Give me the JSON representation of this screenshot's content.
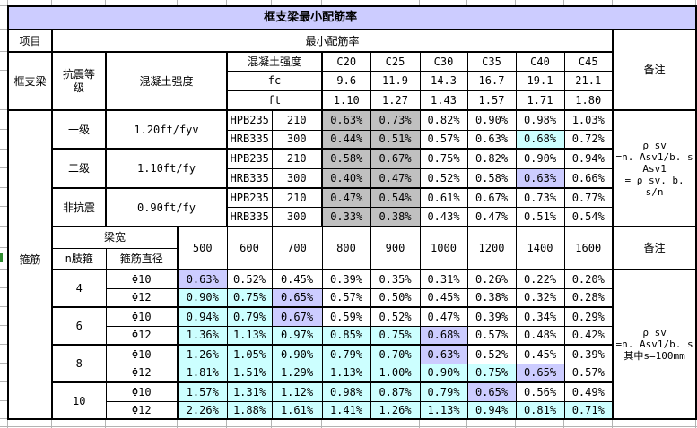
{
  "title": "框支梁最小配筋率",
  "colors": {
    "title_fill": "#CCCCFF",
    "highlight_gray": "#C0C0C0",
    "highlight_cyan": "#CCFFFF",
    "highlight_purple": "#CCCCFF",
    "border": "#000000"
  },
  "project_row": {
    "label": "项目",
    "value": "最小配筋率"
  },
  "beam": {
    "section_label": "框支梁",
    "seismic_grade_header": "抗震等级",
    "concrete_strength_label": "混凝土强度",
    "strength_grade_header": "混凝土强度",
    "fc_label": "fc",
    "ft_label": "ft",
    "grades": [
      "C20",
      "C25",
      "C30",
      "C35",
      "C40",
      "C45"
    ],
    "fc_values": [
      "9.6",
      "11.9",
      "14.3",
      "16.7",
      "19.1",
      "21.1"
    ],
    "ft_values": [
      "1.10",
      "1.27",
      "1.43",
      "1.57",
      "1.71",
      "1.80"
    ],
    "remark_header": "备注",
    "remark_formula": "ρ sv\n=n. Asv1/b. s\nAsv1\n= ρ sv. b. s/n",
    "groups": [
      {
        "grade": "一级",
        "formula": "1.20ft/fyv",
        "rows": [
          {
            "steel": "HPB235",
            "fy": "210",
            "values": [
              "0.63%",
              "0.73%",
              "0.82%",
              "0.90%",
              "0.98%",
              "1.03%"
            ],
            "fills": [
              "gray",
              "gray",
              "",
              "",
              "",
              ""
            ]
          },
          {
            "steel": "HRB335",
            "fy": "300",
            "values": [
              "0.44%",
              "0.51%",
              "0.57%",
              "0.63%",
              "0.68%",
              "0.72%"
            ],
            "fills": [
              "gray",
              "gray",
              "",
              "",
              "cyan",
              ""
            ]
          }
        ]
      },
      {
        "grade": "二级",
        "formula": "1.10ft/fy",
        "rows": [
          {
            "steel": "HPB235",
            "fy": "210",
            "values": [
              "0.58%",
              "0.67%",
              "0.75%",
              "0.82%",
              "0.90%",
              "0.94%"
            ],
            "fills": [
              "gray",
              "gray",
              "",
              "",
              "",
              ""
            ]
          },
          {
            "steel": "HRB335",
            "fy": "300",
            "values": [
              "0.40%",
              "0.47%",
              "0.52%",
              "0.58%",
              "0.63%",
              "0.66%"
            ],
            "fills": [
              "gray",
              "gray",
              "",
              "",
              "purple",
              ""
            ]
          }
        ]
      },
      {
        "grade": "非抗震",
        "formula": "0.90ft/fy",
        "rows": [
          {
            "steel": "HPB235",
            "fy": "210",
            "values": [
              "0.47%",
              "0.54%",
              "0.61%",
              "0.67%",
              "0.73%",
              "0.77%"
            ],
            "fills": [
              "gray",
              "gray",
              "",
              "",
              "",
              ""
            ]
          },
          {
            "steel": "HRB335",
            "fy": "300",
            "values": [
              "0.33%",
              "0.38%",
              "0.43%",
              "0.47%",
              "0.51%",
              "0.54%"
            ],
            "fills": [
              "gray",
              "gray",
              "",
              "",
              "",
              ""
            ]
          }
        ]
      }
    ]
  },
  "stirrup": {
    "section_label": "箍筋",
    "beam_width_header": "梁宽",
    "legs_header": "n肢箍",
    "diameter_header": "箍筋直径",
    "widths": [
      "500",
      "600",
      "700",
      "800",
      "900",
      "1000",
      "1200",
      "1400",
      "1600"
    ],
    "remark_header": "备注",
    "remark_formula": "ρ sv\n=n. Asv1/b. s\n其中s=100mm",
    "groups": [
      {
        "legs": "4",
        "rows": [
          {
            "diameter": "Φ10",
            "values": [
              "0.63%",
              "0.52%",
              "0.45%",
              "0.39%",
              "0.35%",
              "0.31%",
              "0.26%",
              "0.22%",
              "0.20%"
            ],
            "fills": [
              "purple",
              "",
              "",
              "",
              "",
              "",
              "",
              "",
              ""
            ]
          },
          {
            "diameter": "Φ12",
            "values": [
              "0.90%",
              "0.75%",
              "0.65%",
              "0.57%",
              "0.50%",
              "0.45%",
              "0.38%",
              "0.32%",
              "0.28%"
            ],
            "fills": [
              "cyan",
              "cyan",
              "purple",
              "",
              "",
              "",
              "",
              "",
              ""
            ]
          }
        ]
      },
      {
        "legs": "6",
        "rows": [
          {
            "diameter": "Φ10",
            "values": [
              "0.94%",
              "0.79%",
              "0.67%",
              "0.59%",
              "0.52%",
              "0.47%",
              "0.39%",
              "0.34%",
              "0.29%"
            ],
            "fills": [
              "cyan",
              "cyan",
              "purple",
              "",
              "",
              "",
              "",
              "",
              ""
            ]
          },
          {
            "diameter": "Φ12",
            "values": [
              "1.36%",
              "1.13%",
              "0.97%",
              "0.85%",
              "0.75%",
              "0.68%",
              "0.57%",
              "0.48%",
              "0.42%"
            ],
            "fills": [
              "cyan",
              "cyan",
              "cyan",
              "cyan",
              "cyan",
              "purple",
              "",
              "",
              ""
            ]
          }
        ]
      },
      {
        "legs": "8",
        "rows": [
          {
            "diameter": "Φ10",
            "values": [
              "1.26%",
              "1.05%",
              "0.90%",
              "0.79%",
              "0.70%",
              "0.63%",
              "0.52%",
              "0.45%",
              "0.39%"
            ],
            "fills": [
              "cyan",
              "cyan",
              "cyan",
              "cyan",
              "cyan",
              "purple",
              "",
              "",
              ""
            ]
          },
          {
            "diameter": "Φ12",
            "values": [
              "1.81%",
              "1.51%",
              "1.29%",
              "1.13%",
              "1.00%",
              "0.90%",
              "0.75%",
              "0.65%",
              "0.57%"
            ],
            "fills": [
              "cyan",
              "cyan",
              "cyan",
              "cyan",
              "cyan",
              "cyan",
              "cyan",
              "purple",
              ""
            ]
          }
        ]
      },
      {
        "legs": "10",
        "rows": [
          {
            "diameter": "Φ10",
            "values": [
              "1.57%",
              "1.31%",
              "1.12%",
              "0.98%",
              "0.87%",
              "0.79%",
              "0.65%",
              "0.56%",
              "0.49%"
            ],
            "fills": [
              "cyan",
              "cyan",
              "cyan",
              "cyan",
              "cyan",
              "cyan",
              "purple",
              "",
              ""
            ]
          },
          {
            "diameter": "Φ12",
            "values": [
              "2.26%",
              "1.88%",
              "1.61%",
              "1.41%",
              "1.26%",
              "1.13%",
              "0.94%",
              "0.81%",
              "0.71%"
            ],
            "fills": [
              "cyan",
              "cyan",
              "cyan",
              "cyan",
              "cyan",
              "cyan",
              "cyan",
              "cyan",
              "cyan"
            ]
          }
        ]
      }
    ]
  }
}
